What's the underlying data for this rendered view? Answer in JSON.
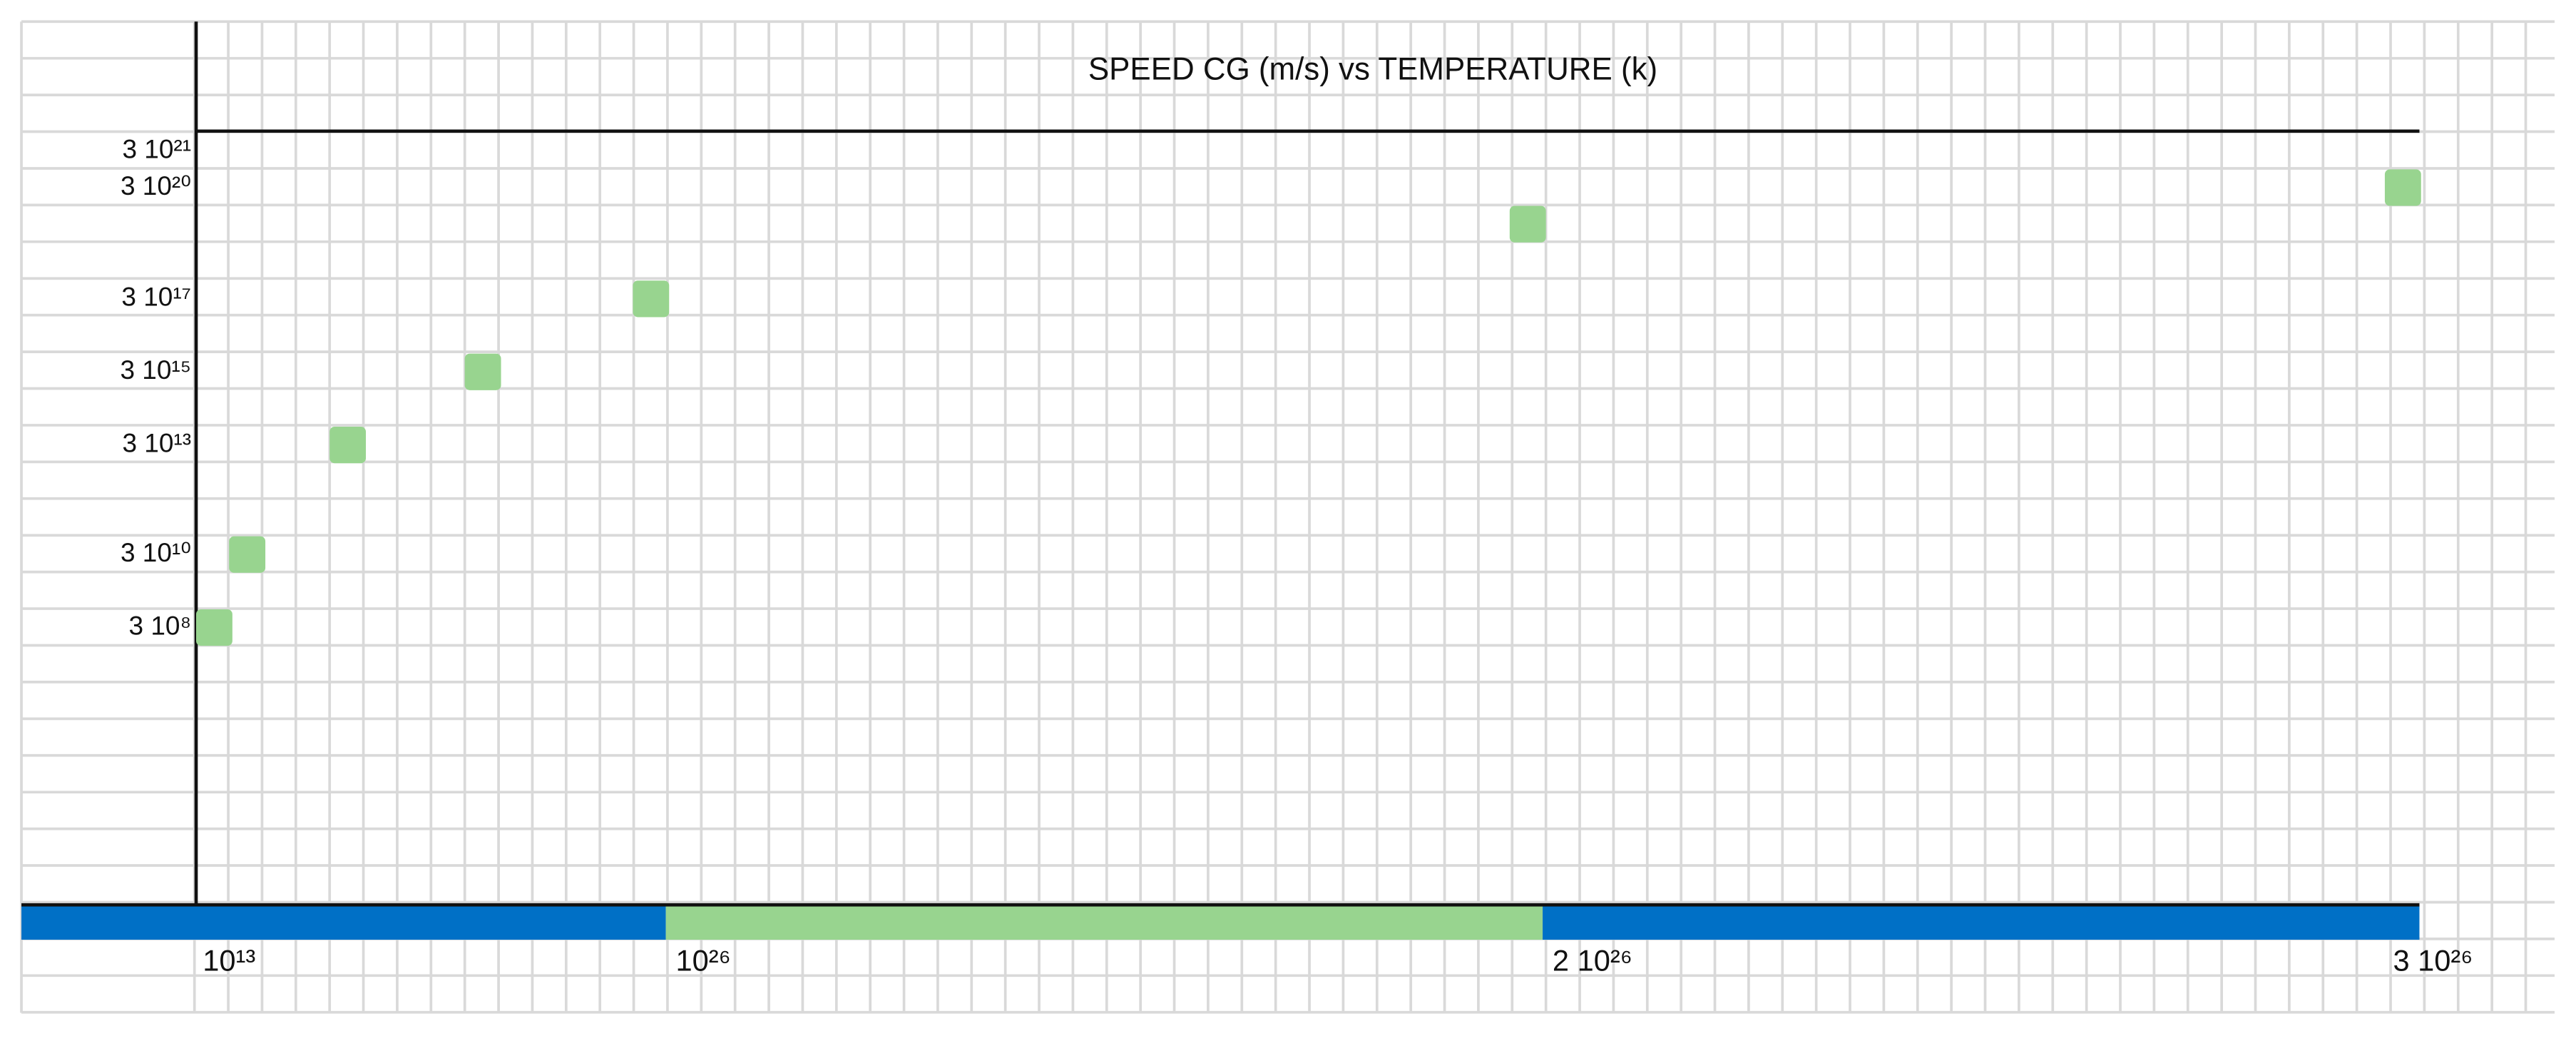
{
  "title": "SPEED CG (m/s) vs TEMPERATURE (k)",
  "y_labels": [
    "3 10²¹",
    "3 10²⁰",
    "3 10¹⁷",
    "3 10¹⁵",
    "3 10¹³",
    "3 10¹⁰",
    "3  10⁸"
  ],
  "x_labels": [
    "10¹³",
    "10²⁶",
    "2 10²⁶",
    "3 10²⁶"
  ]
}
